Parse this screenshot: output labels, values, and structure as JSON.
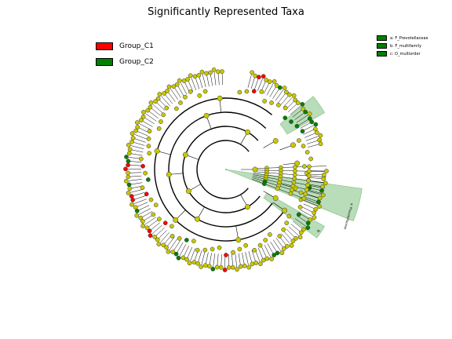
{
  "title": "Significantly Represented Taxa",
  "legend_groups": [
    {
      "label": "Group_C1",
      "color": "#ff0000"
    },
    {
      "label": "Group_C2",
      "color": "#008000"
    }
  ],
  "legend_clades": [
    {
      "label": "a: F_Prevotellaceae",
      "color": "#008000"
    },
    {
      "label": "b: F_multifamily",
      "color": "#008000"
    },
    {
      "label": "c: O_multiorder",
      "color": "#008000"
    }
  ],
  "highlight_labels": {
    "large": "a: Prevotellaceae",
    "small": "b"
  },
  "colors": {
    "node_default": "#c8c800",
    "node_c1": "#ff0000",
    "node_c2": "#008000",
    "highlight_fill": "#b9dcb9"
  }
}
